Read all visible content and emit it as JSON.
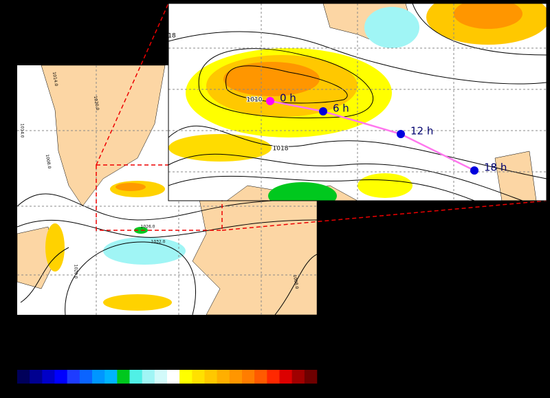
{
  "left_map": {
    "contour_labels": [
      "1014.0",
      "1020.0",
      "1014.0",
      "1008.0",
      "1026.0",
      "1032.0",
      "1020.0",
      "1008.0"
    ]
  },
  "inset": {
    "contour_labels": [
      "18",
      "1010",
      "1018"
    ],
    "track": [
      {
        "label": "0 h",
        "color": "#ff00ff"
      },
      {
        "label": "6 h",
        "color": "#0000dd"
      },
      {
        "label": "12 h",
        "color": "#0000dd"
      },
      {
        "label": "18 h",
        "color": "#0000dd"
      }
    ],
    "track_line_color": "#ff77ee"
  },
  "colorbar": {
    "colors": [
      "#00005a",
      "#000090",
      "#0000c8",
      "#0000ff",
      "#1e3cff",
      "#0a64ff",
      "#0096ff",
      "#00b4ff",
      "#00c81e",
      "#50f0e6",
      "#a0f5f5",
      "#d2fafa",
      "#ffffff",
      "#ffff00",
      "#ffe100",
      "#ffc800",
      "#ffaf00",
      "#ff9600",
      "#ff7d00",
      "#ff5a00",
      "#ff2800",
      "#dc0000",
      "#a00000",
      "#6e0000"
    ]
  }
}
